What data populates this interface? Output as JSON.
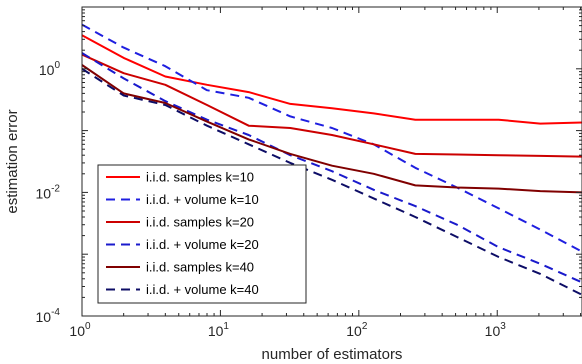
{
  "chart_data": {
    "type": "line",
    "xlabel": "number of estimators",
    "ylabel": "estimation error",
    "xscale": "log",
    "yscale": "log",
    "xlim": [
      1,
      4096
    ],
    "ylim": [
      0.0001,
      10
    ],
    "x_ticks": [
      {
        "value": 1,
        "base": "10",
        "exp": "0"
      },
      {
        "value": 10,
        "base": "10",
        "exp": "1"
      },
      {
        "value": 100,
        "base": "10",
        "exp": "2"
      },
      {
        "value": 1000,
        "base": "10",
        "exp": "3"
      }
    ],
    "y_ticks": [
      {
        "value": 0.0001,
        "base": "10",
        "exp": "-4"
      },
      {
        "value": 0.01,
        "base": "10",
        "exp": "-2"
      },
      {
        "value": 1,
        "base": "10",
        "exp": "0"
      }
    ],
    "grid": false,
    "legend_position": "lower-left",
    "x": [
      1,
      2,
      4,
      8,
      16,
      32,
      64,
      128,
      256,
      512,
      1024,
      2048,
      4096
    ],
    "series": [
      {
        "name": "i.i.d. samples  k=10",
        "color": "#ff0000",
        "dash": "solid",
        "values": [
          3.5,
          1.5,
          0.75,
          0.55,
          0.42,
          0.27,
          0.23,
          0.19,
          0.15,
          0.15,
          0.15,
          0.13,
          0.135
        ]
      },
      {
        "name": "i.i.d. + volume k=10",
        "color": "#1f1fe0",
        "dash": "dashed",
        "values": [
          5.2,
          2.2,
          1.1,
          0.45,
          0.34,
          0.17,
          0.11,
          0.06,
          0.025,
          0.012,
          0.0055,
          0.0025,
          0.0011
        ]
      },
      {
        "name": "i.i.d. samples  k=20",
        "color": "#cc0000",
        "dash": "solid",
        "values": [
          1.7,
          0.85,
          0.55,
          0.26,
          0.12,
          0.11,
          0.085,
          0.06,
          0.042,
          0.041,
          0.04,
          0.039,
          0.038
        ]
      },
      {
        "name": "i.i.d. + volume k=20",
        "color": "#1a1acc",
        "dash": "dashed",
        "values": [
          1.8,
          0.7,
          0.3,
          0.15,
          0.085,
          0.04,
          0.022,
          0.011,
          0.006,
          0.003,
          0.0013,
          0.0007,
          0.00035
        ]
      },
      {
        "name": "i.i.d. samples  k=40",
        "color": "#800000",
        "dash": "solid",
        "values": [
          1.15,
          0.4,
          0.28,
          0.14,
          0.072,
          0.042,
          0.027,
          0.02,
          0.013,
          0.012,
          0.0115,
          0.0105,
          0.01
        ]
      },
      {
        "name": "i.i.d. + volume k=40",
        "color": "#0d0d66",
        "dash": "dashed",
        "values": [
          1.0,
          0.37,
          0.26,
          0.12,
          0.06,
          0.03,
          0.016,
          0.008,
          0.004,
          0.0019,
          0.0009,
          0.00048,
          0.00022
        ]
      }
    ]
  }
}
